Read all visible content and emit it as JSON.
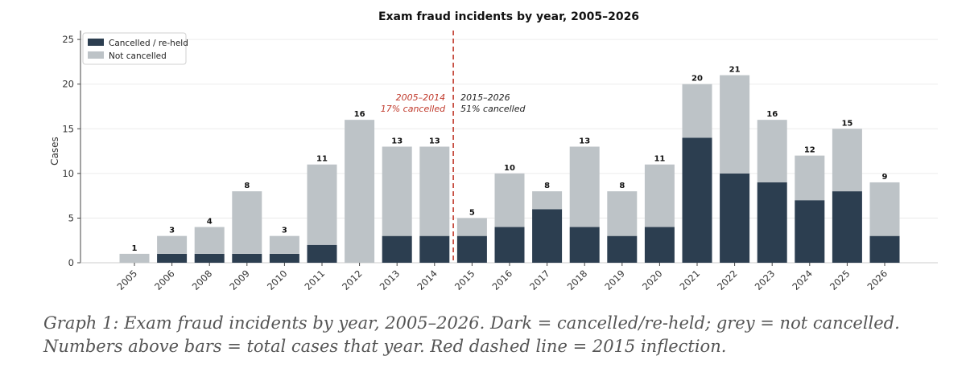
{
  "chart_data": {
    "type": "bar",
    "stacked": true,
    "title": "Exam fraud incidents by year, 2005–2026",
    "xlabel": "",
    "ylabel": "Cases",
    "ylim": [
      0,
      26
    ],
    "yticks": [
      0,
      5,
      10,
      15,
      20,
      25
    ],
    "grid": true,
    "legend_position": "top-left",
    "categories": [
      "2005",
      "2006",
      "2008",
      "2009",
      "2010",
      "2011",
      "2012",
      "2013",
      "2014",
      "2015",
      "2016",
      "2017",
      "2018",
      "2019",
      "2020",
      "2021",
      "2022",
      "2023",
      "2024",
      "2025",
      "2026"
    ],
    "series": [
      {
        "name": "Cancelled / re-held",
        "color": "#2c3e50",
        "values": [
          0,
          1,
          1,
          1,
          1,
          2,
          0,
          3,
          3,
          3,
          4,
          6,
          4,
          3,
          4,
          14,
          10,
          9,
          7,
          8,
          3
        ]
      },
      {
        "name": "Not cancelled",
        "color": "#bdc3c7",
        "values": [
          1,
          2,
          3,
          7,
          2,
          9,
          16,
          10,
          10,
          2,
          6,
          2,
          9,
          5,
          7,
          6,
          11,
          7,
          5,
          7,
          6
        ]
      }
    ],
    "totals": [
      1,
      3,
      4,
      8,
      3,
      11,
      16,
      13,
      13,
      5,
      10,
      8,
      13,
      8,
      11,
      20,
      21,
      16,
      12,
      15,
      9
    ],
    "reference_line": {
      "between": [
        "2014",
        "2015"
      ],
      "color": "#c0392b",
      "style": "dashed",
      "left_annotation": [
        "2005–2014",
        "17% cancelled"
      ],
      "right_annotation": [
        "2015–2026",
        "51% cancelled"
      ]
    }
  },
  "caption": "Graph 1: Exam fraud incidents by year, 2005–2026. Dark = cancelled/re-held; grey = not cancelled. Numbers above bars = total cases that year. Red dashed line = 2015 inflection."
}
